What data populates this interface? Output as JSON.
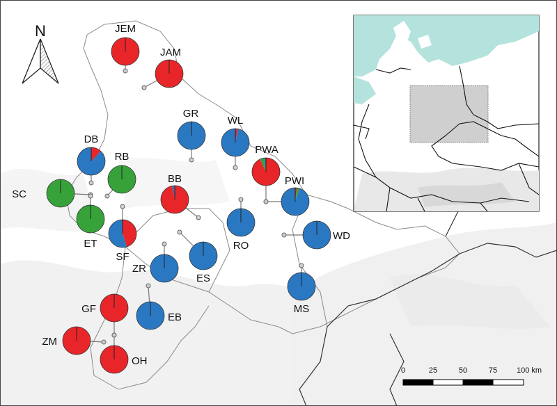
{
  "north_arrow": {
    "label": "N"
  },
  "colors": {
    "red": "#e8262a",
    "blue": "#2b78c2",
    "green": "#37a23a",
    "sea": "#b3e3dc",
    "border": "#222222",
    "land_background": "#ffffff",
    "relief": "#dcdcdc",
    "study_area": "#bfbfbf"
  },
  "sites": [
    {
      "code": "JEM",
      "shares": {
        "red": 1.0,
        "blue": 0,
        "green": 0
      }
    },
    {
      "code": "JAM",
      "shares": {
        "red": 1.0,
        "blue": 0,
        "green": 0
      }
    },
    {
      "code": "GR",
      "shares": {
        "red": 0,
        "blue": 1.0,
        "green": 0
      }
    },
    {
      "code": "WL",
      "shares": {
        "red": 0.03,
        "blue": 0.97,
        "green": 0
      }
    },
    {
      "code": "DB",
      "shares": {
        "red": 0.12,
        "blue": 0.88,
        "green": 0
      }
    },
    {
      "code": "RB",
      "shares": {
        "red": 0,
        "blue": 0,
        "green": 1.0
      }
    },
    {
      "code": "PWA",
      "shares": {
        "red": 0.93,
        "blue": 0.02,
        "green": 0.05
      }
    },
    {
      "code": "BB",
      "shares": {
        "red": 0.97,
        "blue": 0.03,
        "green": 0
      }
    },
    {
      "code": "PWI",
      "shares": {
        "red": 0.02,
        "blue": 0.95,
        "green": 0.03
      }
    },
    {
      "code": "SC",
      "shares": {
        "red": 0,
        "blue": 0,
        "green": 1.0
      }
    },
    {
      "code": "ET",
      "shares": {
        "red": 0,
        "blue": 0,
        "green": 1.0
      }
    },
    {
      "code": "RO",
      "shares": {
        "red": 0,
        "blue": 1.0,
        "green": 0
      }
    },
    {
      "code": "WD",
      "shares": {
        "red": 0,
        "blue": 1.0,
        "green": 0
      }
    },
    {
      "code": "SF",
      "shares": {
        "red": 0.45,
        "blue": 0.55,
        "green": 0
      }
    },
    {
      "code": "ZR",
      "shares": {
        "red": 0,
        "blue": 1.0,
        "green": 0
      }
    },
    {
      "code": "ES",
      "shares": {
        "red": 0,
        "blue": 1.0,
        "green": 0
      }
    },
    {
      "code": "MS",
      "shares": {
        "red": 0,
        "blue": 1.0,
        "green": 0
      }
    },
    {
      "code": "GF",
      "shares": {
        "red": 1.0,
        "blue": 0,
        "green": 0
      }
    },
    {
      "code": "EB",
      "shares": {
        "red": 0,
        "blue": 1.0,
        "green": 0
      }
    },
    {
      "code": "ZM",
      "shares": {
        "red": 1.0,
        "blue": 0,
        "green": 0
      }
    },
    {
      "code": "OH",
      "shares": {
        "red": 1.0,
        "blue": 0,
        "green": 0
      }
    }
  ],
  "scale_bar": {
    "ticks": [
      "0",
      "25",
      "50",
      "75",
      "100 km"
    ]
  }
}
